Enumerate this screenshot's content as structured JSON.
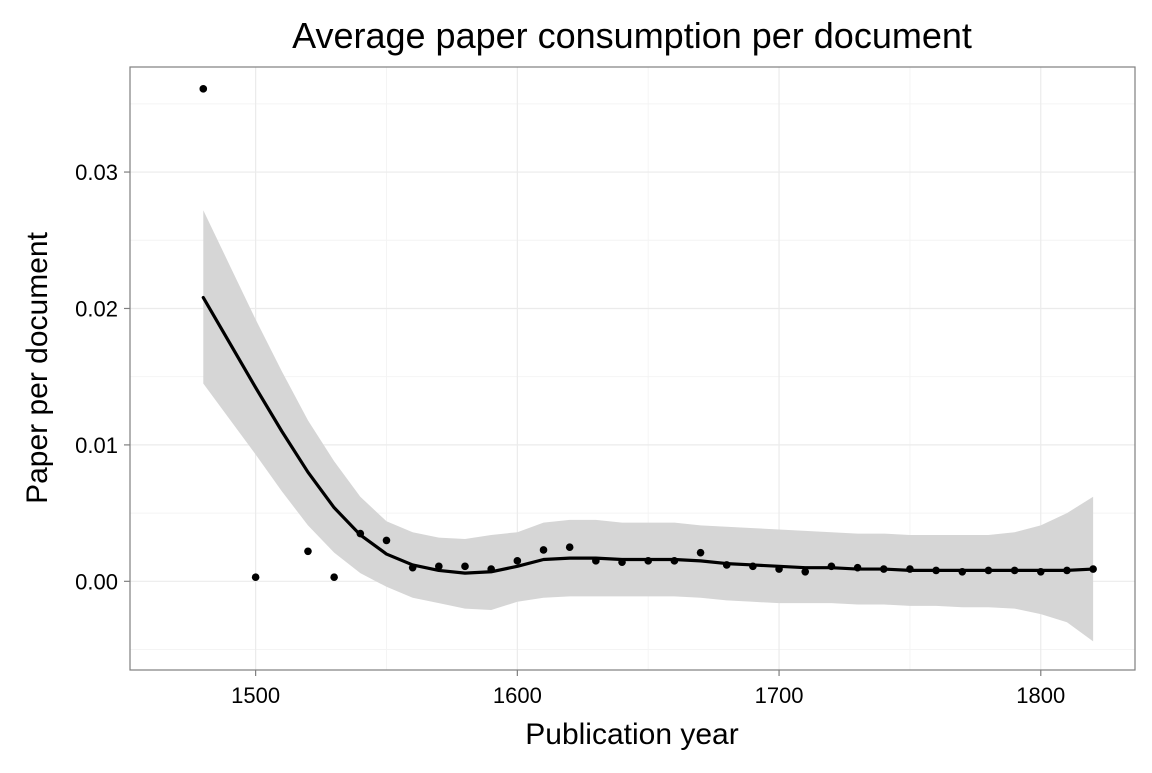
{
  "chart_data": {
    "type": "scatter",
    "title": "Average paper consumption per document",
    "xlabel": "Publication year",
    "ylabel": "Paper per document",
    "xlim": [
      1452,
      1836
    ],
    "ylim": [
      -0.0065,
      0.0377
    ],
    "x_ticks": [
      {
        "value": 1500,
        "label": "1500"
      },
      {
        "value": 1600,
        "label": "1600"
      },
      {
        "value": 1700,
        "label": "1700"
      },
      {
        "value": 1800,
        "label": "1800"
      }
    ],
    "y_ticks": [
      {
        "value": 0.0,
        "label": "0.00"
      },
      {
        "value": 0.01,
        "label": "0.01"
      },
      {
        "value": 0.02,
        "label": "0.02"
      },
      {
        "value": 0.03,
        "label": "0.03"
      }
    ],
    "grid": true,
    "points": [
      {
        "x": 1480,
        "y": 0.0361
      },
      {
        "x": 1500,
        "y": 0.0003
      },
      {
        "x": 1520,
        "y": 0.0022
      },
      {
        "x": 1530,
        "y": 0.0003
      },
      {
        "x": 1540,
        "y": 0.0035
      },
      {
        "x": 1550,
        "y": 0.003
      },
      {
        "x": 1560,
        "y": 0.001
      },
      {
        "x": 1570,
        "y": 0.0011
      },
      {
        "x": 1580,
        "y": 0.0011
      },
      {
        "x": 1590,
        "y": 0.0009
      },
      {
        "x": 1600,
        "y": 0.0015
      },
      {
        "x": 1610,
        "y": 0.0023
      },
      {
        "x": 1620,
        "y": 0.0025
      },
      {
        "x": 1630,
        "y": 0.0015
      },
      {
        "x": 1640,
        "y": 0.0014
      },
      {
        "x": 1650,
        "y": 0.0015
      },
      {
        "x": 1660,
        "y": 0.0015
      },
      {
        "x": 1670,
        "y": 0.0021
      },
      {
        "x": 1680,
        "y": 0.0012
      },
      {
        "x": 1690,
        "y": 0.0011
      },
      {
        "x": 1700,
        "y": 0.0009
      },
      {
        "x": 1710,
        "y": 0.0007
      },
      {
        "x": 1720,
        "y": 0.0011
      },
      {
        "x": 1730,
        "y": 0.001
      },
      {
        "x": 1740,
        "y": 0.0009
      },
      {
        "x": 1750,
        "y": 0.0009
      },
      {
        "x": 1760,
        "y": 0.0008
      },
      {
        "x": 1770,
        "y": 0.0007
      },
      {
        "x": 1780,
        "y": 0.0008
      },
      {
        "x": 1790,
        "y": 0.0008
      },
      {
        "x": 1800,
        "y": 0.0007
      },
      {
        "x": 1810,
        "y": 0.0008
      },
      {
        "x": 1820,
        "y": 0.0009
      }
    ],
    "smooth": {
      "x": [
        1480,
        1490,
        1500,
        1510,
        1520,
        1530,
        1540,
        1550,
        1560,
        1570,
        1580,
        1590,
        1600,
        1610,
        1620,
        1630,
        1640,
        1650,
        1660,
        1670,
        1680,
        1690,
        1700,
        1710,
        1720,
        1730,
        1740,
        1750,
        1760,
        1770,
        1780,
        1790,
        1800,
        1810,
        1820
      ],
      "y": [
        0.0208,
        0.0175,
        0.0142,
        0.011,
        0.008,
        0.0054,
        0.0034,
        0.002,
        0.0012,
        0.0008,
        0.0006,
        0.0007,
        0.0011,
        0.0016,
        0.0017,
        0.0017,
        0.0016,
        0.0016,
        0.0016,
        0.0015,
        0.0013,
        0.0012,
        0.0011,
        0.001,
        0.001,
        0.0009,
        0.0009,
        0.0008,
        0.0008,
        0.0008,
        0.0008,
        0.0008,
        0.0008,
        0.0008,
        0.0009
      ],
      "lower": [
        0.0145,
        0.0119,
        0.0093,
        0.0066,
        0.0041,
        0.0021,
        0.0006,
        -0.0004,
        -0.0012,
        -0.0016,
        -0.002,
        -0.0021,
        -0.0015,
        -0.0012,
        -0.0011,
        -0.0011,
        -0.0011,
        -0.0011,
        -0.0011,
        -0.0012,
        -0.0014,
        -0.0015,
        -0.0016,
        -0.0016,
        -0.0016,
        -0.0017,
        -0.0017,
        -0.0018,
        -0.0018,
        -0.0019,
        -0.0019,
        -0.002,
        -0.0024,
        -0.003,
        -0.0044
      ],
      "upper": [
        0.0272,
        0.0232,
        0.0192,
        0.0154,
        0.0118,
        0.0088,
        0.0062,
        0.0044,
        0.0036,
        0.0032,
        0.0031,
        0.0034,
        0.0036,
        0.0043,
        0.0045,
        0.0045,
        0.0043,
        0.0043,
        0.0043,
        0.0041,
        0.004,
        0.0039,
        0.0038,
        0.0037,
        0.0036,
        0.0035,
        0.0035,
        0.0034,
        0.0034,
        0.0034,
        0.0034,
        0.0036,
        0.0041,
        0.005,
        0.0062
      ]
    }
  }
}
